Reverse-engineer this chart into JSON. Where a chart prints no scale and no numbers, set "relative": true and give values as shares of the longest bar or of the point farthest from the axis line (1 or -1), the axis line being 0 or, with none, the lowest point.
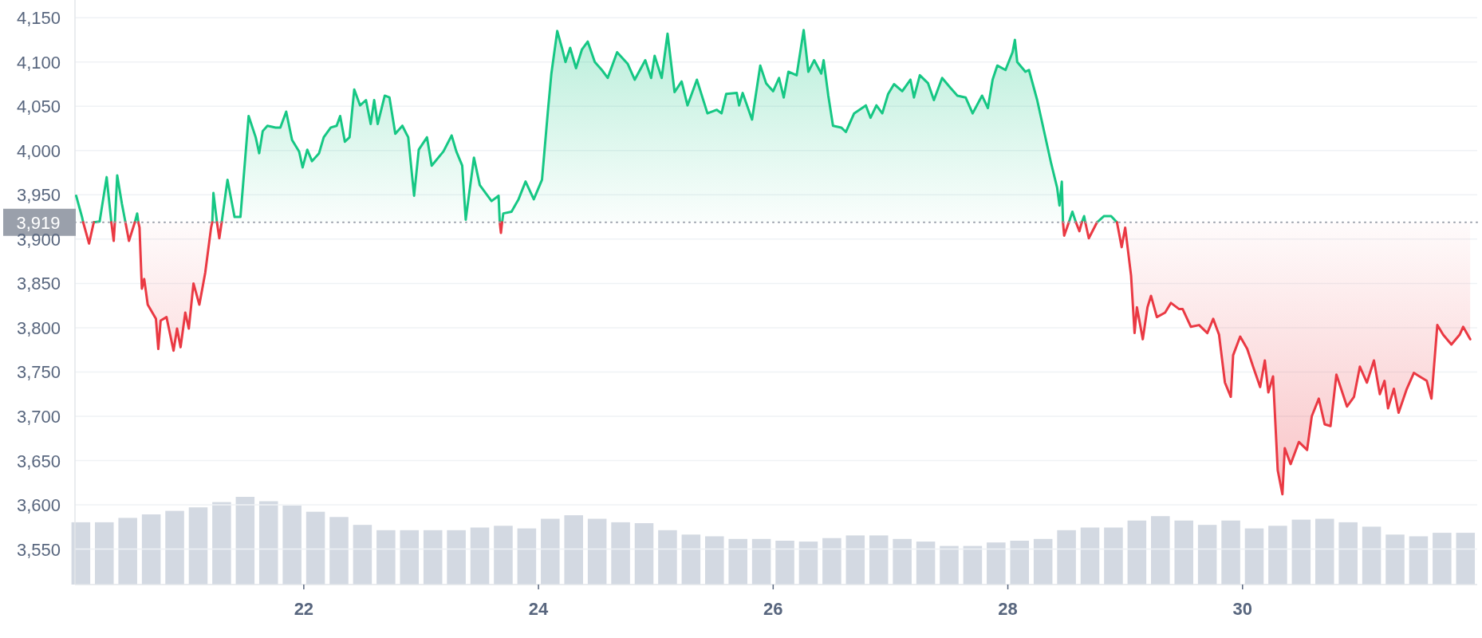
{
  "chart_data": [
    {
      "type": "line",
      "xlim": [
        20.05,
        32
      ],
      "xticks": [
        22,
        24,
        26,
        28,
        30
      ],
      "ylim": [
        3510,
        4170
      ],
      "yticks": [
        {
          "value": 3550,
          "label": "3,550"
        },
        {
          "value": 3600,
          "label": "3,600"
        },
        {
          "value": 3650,
          "label": "3,650"
        },
        {
          "value": 3700,
          "label": "3,700"
        },
        {
          "value": 3750,
          "label": "3,750"
        },
        {
          "value": 3800,
          "label": "3,800"
        },
        {
          "value": 3850,
          "label": "3,850"
        },
        {
          "value": 3900,
          "label": "3,900"
        },
        {
          "value": 3950,
          "label": "3,950"
        },
        {
          "value": 4000,
          "label": "4,000"
        },
        {
          "value": 4050,
          "label": "4,050"
        },
        {
          "value": 4100,
          "label": "4,100"
        },
        {
          "value": 4150,
          "label": "4,150"
        }
      ],
      "grid": "y",
      "ref_lines": [
        {
          "axis": "y",
          "value": 3919,
          "label": "3,919",
          "color": "#9aa0ab",
          "line_style": "dotted"
        }
      ],
      "series": [
        {
          "color": "#16c784",
          "x": [
            20.06,
            20.11,
            20.12,
            20.15,
            20.21,
            20.26,
            20.32,
            20.36,
            20.38,
            20.39,
            20.41,
            20.45,
            20.48,
            20.51,
            20.56,
            20.58,
            20.59,
            20.9,
            21.22,
            21.23,
            21.26,
            21.28,
            21.3,
            21.35,
            21.41,
            21.46,
            21.5,
            21.53,
            21.59,
            21.62,
            21.65,
            21.69,
            21.76,
            21.8,
            21.85,
            21.9,
            21.96,
            21.99,
            22.03,
            22.07,
            22.13,
            22.17,
            22.23,
            22.28,
            22.31,
            22.35,
            22.39,
            22.43,
            22.48,
            22.53,
            22.57,
            22.6,
            22.63,
            22.69,
            22.73,
            22.78,
            22.84,
            22.89,
            22.94,
            22.98,
            23.05,
            23.09,
            23.19,
            23.26,
            23.3,
            23.35,
            23.38,
            23.45,
            23.5,
            23.6,
            23.66,
            23.67,
            23.68,
            23.69,
            23.7,
            23.77,
            23.83,
            23.89,
            23.96,
            24.03,
            24.08,
            24.11,
            24.16,
            24.2,
            24.23,
            24.27,
            24.32,
            24.37,
            24.42,
            24.48,
            24.54,
            24.59,
            24.67,
            24.76,
            24.82,
            24.91,
            24.96,
            24.99,
            25.05,
            25.1,
            25.16,
            25.22,
            25.27,
            25.35,
            25.44,
            25.52,
            25.56,
            25.6,
            25.69,
            25.71,
            25.74,
            25.82,
            25.89,
            25.94,
            26.0,
            26.05,
            26.09,
            26.13,
            26.2,
            26.26,
            26.3,
            26.35,
            26.41,
            26.43,
            26.47,
            26.51,
            26.58,
            26.62,
            26.69,
            26.79,
            26.83,
            26.88,
            26.93,
            26.98,
            27.03,
            27.1,
            27.17,
            27.2,
            27.25,
            27.32,
            27.37,
            27.44,
            27.51,
            27.57,
            27.64,
            27.7,
            27.78,
            27.83,
            27.87,
            27.91,
            27.98,
            28.04,
            28.06,
            28.08,
            28.15,
            28.18,
            28.25,
            28.31,
            28.37,
            28.42,
            28.44,
            28.46,
            28.47,
            28.48,
            28.52,
            28.55,
            28.58,
            28.61,
            28.63,
            28.65,
            28.66,
            28.7,
            28.76,
            28.82,
            28.88,
            28.93
          ],
          "values": [
            3949,
            3925,
            3919,
            null,
            3919,
            3920,
            3970,
            3919,
            null,
            3919,
            3972,
            3940,
            3919,
            null,
            3919,
            3929,
            3919,
            null,
            3919,
            3952,
            3919,
            null,
            3919,
            3967,
            3925,
            3925,
            3990,
            4039,
            4015,
            3997,
            4022,
            4028,
            4026,
            4026,
            4044,
            4012,
            3999,
            3981,
            4001,
            3988,
            3997,
            4015,
            4026,
            4028,
            4039,
            4010,
            4015,
            4069,
            4051,
            4057,
            4030,
            4057,
            4030,
            4062,
            4060,
            4019,
            4028,
            4015,
            3949,
            4001,
            4015,
            3983,
            3999,
            4017,
            3999,
            3983,
            3922,
            3992,
            3961,
            3943,
            3949,
            3919,
            null,
            3919,
            3929,
            3931,
            3945,
            3965,
            3945,
            3967,
            4044,
            4087,
            4135,
            4116,
            4100,
            4116,
            4093,
            4114,
            4123,
            4100,
            4091,
            4082,
            4111,
            4098,
            4080,
            4102,
            4082,
            4107,
            4082,
            4132,
            4066,
            4078,
            4051,
            4080,
            4042,
            4046,
            4042,
            4064,
            4065,
            4051,
            4065,
            4035,
            4096,
            4076,
            4067,
            4082,
            4060,
            4089,
            4085,
            4136,
            4089,
            4102,
            4087,
            4102,
            4062,
            4028,
            4026,
            4021,
            4042,
            4051,
            4037,
            4051,
            4042,
            4064,
            4075,
            4067,
            4080,
            4060,
            4085,
            4076,
            4057,
            4082,
            4071,
            4062,
            4060,
            4042,
            4062,
            4048,
            4080,
            4096,
            4091,
            4111,
            4125,
            4100,
            4089,
            4091,
            4057,
            4021,
            3985,
            3958,
            3938,
            3965,
            3919,
            null,
            3919,
            3931,
            3919,
            null,
            3919,
            3926,
            3919,
            null,
            3919,
            3926,
            3926,
            3919
          ]
        },
        {
          "color": "#ea3943",
          "x": [
            20.12,
            20.17,
            20.21,
            20.3,
            20.36,
            20.38,
            20.39,
            20.44,
            20.48,
            20.51,
            20.56,
            20.575,
            20.59,
            20.6,
            20.62,
            20.64,
            20.67,
            20.74,
            20.76,
            20.78,
            20.83,
            20.89,
            20.92,
            20.95,
            20.99,
            21.02,
            21.06,
            21.11,
            21.16,
            21.21,
            21.22,
            21.24,
            21.26,
            21.28,
            21.3,
            22.5,
            23.67,
            23.68,
            23.69,
            26,
            28.47,
            28.48,
            28.52,
            28.55,
            28.58,
            28.61,
            28.63,
            28.645,
            28.66,
            28.69,
            28.76,
            28.85,
            28.93,
            28.97,
            29.0,
            29.05,
            29.08,
            29.1,
            29.15,
            29.19,
            29.22,
            29.27,
            29.34,
            29.39,
            29.46,
            29.49,
            29.56,
            29.63,
            29.7,
            29.75,
            29.8,
            29.85,
            29.9,
            29.92,
            29.98,
            30.04,
            30.09,
            30.15,
            30.19,
            30.22,
            30.26,
            30.3,
            30.34,
            30.36,
            30.41,
            30.48,
            30.55,
            30.59,
            30.65,
            30.7,
            30.75,
            30.8,
            30.89,
            30.95,
            31.0,
            31.06,
            31.12,
            31.17,
            31.21,
            31.24,
            31.29,
            31.33,
            31.4,
            31.46,
            31.57,
            31.61,
            31.66,
            31.71,
            31.78,
            31.85,
            31.88,
            31.94
          ],
          "values": [
            3919,
            3895,
            3919,
            null,
            3919,
            3898,
            3919,
            null,
            3919,
            3898,
            3919,
            null,
            3919,
            3913,
            3844,
            3855,
            3826,
            3810,
            3776,
            3808,
            3812,
            3774,
            3799,
            3778,
            3817,
            3799,
            3850,
            3826,
            3862,
            3913,
            3919,
            null,
            3919,
            3901,
            3919,
            null,
            3919,
            3907,
            3919,
            null,
            3919,
            3904,
            3919,
            null,
            3919,
            3909,
            3919,
            null,
            3919,
            3901,
            3919,
            null,
            3919,
            3891,
            3913,
            3859,
            3794,
            3823,
            3787,
            3823,
            3836,
            3812,
            3817,
            3828,
            3821,
            3821,
            3801,
            3803,
            3794,
            3810,
            3792,
            3738,
            3722,
            3769,
            3790,
            3776,
            3756,
            3733,
            3763,
            3727,
            3745,
            3639,
            3612,
            3664,
            3646,
            3671,
            3662,
            3700,
            3720,
            3691,
            3689,
            3747,
            3711,
            3722,
            3756,
            3738,
            3763,
            3725,
            3740,
            3709,
            3731,
            3704,
            3731,
            3749,
            3740,
            3720,
            3803,
            3792,
            3781,
            3792,
            3801,
            3787
          ]
        }
      ]
    },
    {
      "type": "bar",
      "relative": true,
      "xlim": [
        20.05,
        32
      ],
      "color": "#d3d9e2",
      "x": [
        20.1,
        20.3,
        20.5,
        20.7,
        20.9,
        21.1,
        21.3,
        21.5,
        21.7,
        21.9,
        22.1,
        22.3,
        22.5,
        22.7,
        22.9,
        23.1,
        23.3,
        23.5,
        23.7,
        23.9,
        24.1,
        24.3,
        24.5,
        24.7,
        24.9,
        25.1,
        25.3,
        25.5,
        25.7,
        25.9,
        26.1,
        26.3,
        26.5,
        26.7,
        26.9,
        27.1,
        27.3,
        27.5,
        27.7,
        27.9,
        28.1,
        28.3,
        28.5,
        28.7,
        28.9,
        29.1,
        29.3,
        29.5,
        29.7,
        29.9,
        30.1,
        30.3,
        30.5,
        30.7,
        30.9,
        31.1,
        31.3,
        31.5,
        31.7,
        31.9
      ],
      "values": [
        0.71,
        0.71,
        0.76,
        0.8,
        0.84,
        0.88,
        0.94,
        1,
        0.95,
        0.9,
        0.83,
        0.77,
        0.68,
        0.62,
        0.62,
        0.62,
        0.62,
        0.65,
        0.67,
        0.64,
        0.75,
        0.79,
        0.75,
        0.71,
        0.7,
        0.62,
        0.57,
        0.55,
        0.52,
        0.52,
        0.5,
        0.49,
        0.53,
        0.56,
        0.56,
        0.52,
        0.49,
        0.44,
        0.44,
        0.48,
        0.5,
        0.52,
        0.62,
        0.65,
        0.65,
        0.73,
        0.78,
        0.73,
        0.68,
        0.73,
        0.64,
        0.67,
        0.74,
        0.75,
        0.71,
        0.66,
        0.57,
        0.55,
        0.59,
        0.59
      ]
    }
  ]
}
